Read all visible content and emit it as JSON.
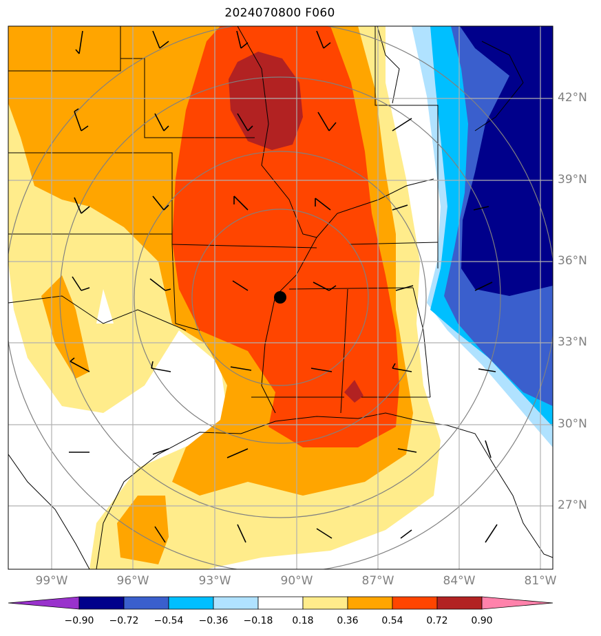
{
  "title": "2024070800 F060",
  "lat_labels": [
    "42°N",
    "39°N",
    "36°N",
    "33°N",
    "30°N",
    "27°N"
  ],
  "lon_labels": [
    "99°W",
    "96°W",
    "93°W",
    "90°W",
    "87°W",
    "84°W",
    "81°W"
  ],
  "colorbar": {
    "tick_labels": [
      "−0.90",
      "−0.72",
      "−0.54",
      "−0.36",
      "−0.18",
      "0.18",
      "0.36",
      "0.54",
      "0.72",
      "0.90"
    ],
    "colors": [
      "#9932cc",
      "#00008b",
      "#3a5fcd",
      "#00bfff",
      "#b0e2ff",
      "#ffffff",
      "#ffec8b",
      "#ffa500",
      "#ff4500",
      "#b22222",
      "#ff82ab"
    ]
  },
  "marker": "station-dot"
}
